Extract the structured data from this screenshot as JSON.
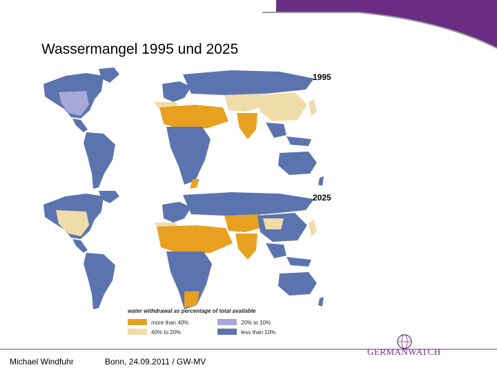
{
  "slide": {
    "title": "Wassermangel 1995 und 2025",
    "accent_color": "#6a2d83"
  },
  "maps": [
    {
      "label": "1995"
    },
    {
      "label": "2025"
    }
  ],
  "legend": {
    "title": "water withdrawal as percentage of total available",
    "items": [
      {
        "label": "more than 40%",
        "color": "#e8a020"
      },
      {
        "label": "20% to 10%",
        "color": "#a8a8d8"
      },
      {
        "label": "40% to 20%",
        "color": "#f0dca8"
      },
      {
        "label": "less than 10%",
        "color": "#5b74b0"
      }
    ]
  },
  "footer": {
    "author": "Michael Windfuhr",
    "place_date": "Bonn, 24.09.2011 / GW-MV",
    "logo_text": "GERMANWATCH"
  }
}
